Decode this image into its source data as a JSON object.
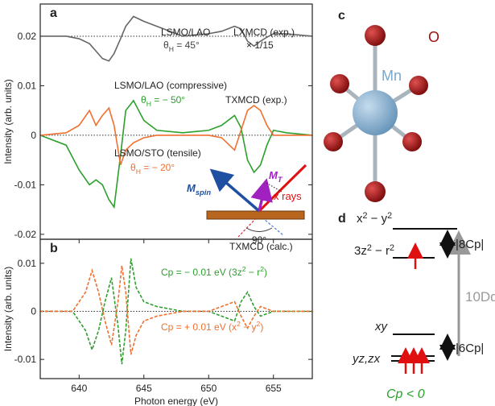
{
  "chart_data": [
    {
      "type": "line",
      "panel": "a",
      "y_label": "Intensity (arb. units)",
      "xlim": [
        637,
        658
      ],
      "ylim": [
        -0.021,
        0.0265
      ],
      "yticks": [
        0.02,
        0.01,
        0,
        -0.01,
        -0.02
      ],
      "ref_lines": [
        0.02,
        0
      ],
      "x": [
        637,
        639,
        640,
        640.8,
        641.3,
        641.8,
        642.3,
        642.7,
        643.2,
        643.6,
        644.2,
        645,
        646,
        648,
        650,
        651,
        652,
        652.5,
        653,
        653.5,
        654,
        654.5,
        655,
        656,
        658
      ],
      "series": [
        {
          "name": "LSMO/LAO",
          "color": "#666666",
          "values": [
            0.02,
            0.02,
            0.0195,
            0.0185,
            0.017,
            0.0155,
            0.015,
            0.0165,
            0.0195,
            0.022,
            0.024,
            0.023,
            0.022,
            0.02,
            0.0205,
            0.021,
            0.022,
            0.0215,
            0.019,
            0.018,
            0.019,
            0.0198,
            0.0205,
            0.0205,
            0.02
          ]
        },
        {
          "name": "LSMO/LAO (compressive)",
          "color": "#2ca02c",
          "values": [
            0,
            -0.002,
            -0.007,
            -0.01,
            -0.009,
            -0.01,
            -0.013,
            -0.0145,
            -0.004,
            0.005,
            0.007,
            0.003,
            0.001,
            0.0005,
            0.001,
            0.002,
            0.004,
            0.0015,
            -0.005,
            -0.0075,
            -0.006,
            -0.002,
            0.001,
            0.0005,
            0
          ]
        },
        {
          "name": "LSMO/STO (tensile)",
          "color": "#f07030",
          "values": [
            0,
            0.0005,
            0.002,
            0.005,
            0.002,
            0.004,
            0.0055,
            0.002,
            -0.006,
            -0.003,
            -0.0015,
            -0.0005,
            0,
            0,
            0,
            -0.0005,
            -0.003,
            0.001,
            0.005,
            0.006,
            0.005,
            0.002,
            0,
            0,
            0
          ]
        }
      ],
      "annotations": [
        {
          "parts": [
            "θ",
            "H",
            " = 45°"
          ],
          "color": "#444444"
        },
        {
          "parts": [
            "LXMCD (exp.)"
          ],
          "color": "#222222"
        },
        {
          "parts": [
            "× 1/15"
          ],
          "color": "#222222"
        },
        {
          "parts": [
            "θ",
            "H",
            " = − 50°"
          ],
          "color": "#2ca02c"
        },
        {
          "parts": [
            "TXMCD (exp.)"
          ],
          "color": "#222222"
        },
        {
          "parts": [
            "θ",
            "H",
            " = − 20°"
          ],
          "color": "#f07030"
        }
      ],
      "inset": {
        "m_spin": [
          "M",
          "spin"
        ],
        "m_t": [
          "M",
          "T"
        ],
        "x_rays": "x rays",
        "angle": "90°"
      }
    },
    {
      "type": "line",
      "panel": "b",
      "y_label": "Intensity (arb. units)",
      "x_label": "Photon energy (eV)",
      "xlim": [
        637,
        658
      ],
      "ylim": [
        -0.014,
        0.015
      ],
      "xticks": [
        640,
        645,
        650,
        655
      ],
      "yticks": [
        0.01,
        0,
        -0.01
      ],
      "ref_lines": [
        0
      ],
      "dashed": true,
      "x": [
        637,
        639.5,
        640.5,
        641,
        641.5,
        642,
        642.5,
        643,
        643.3,
        643.6,
        644,
        644.4,
        645,
        646,
        648,
        650,
        651,
        652,
        652.5,
        653,
        653.5,
        654,
        655,
        658
      ],
      "series": [
        {
          "color": "#2ca02c",
          "values": [
            0,
            0,
            -0.004,
            -0.008,
            -0.004,
            0.002,
            0.007,
            -0.003,
            -0.011,
            -0.004,
            0.011,
            0.005,
            0.002,
            0.001,
            0,
            0,
            -0.001,
            -0.002,
            0.002,
            0.004,
            0.001,
            -0.001,
            0,
            0
          ]
        },
        {
          "color": "#f07030",
          "values": [
            0,
            0,
            0.004,
            0.0085,
            0.004,
            -0.002,
            -0.007,
            0.002,
            0.0095,
            0.004,
            -0.009,
            -0.005,
            -0.002,
            -0.001,
            0,
            0,
            0.001,
            0.002,
            -0.001,
            -0.0035,
            -0.001,
            0.001,
            0,
            0
          ]
        }
      ],
      "annotations": [
        {
          "parts": [
            "TXMCD (calc.)"
          ],
          "color": "#222222"
        },
        {
          "parts": [
            "Cp = − 0.01 eV (3z",
            "2",
            " − r",
            "2",
            ")"
          ],
          "color": "#2ca02c"
        },
        {
          "parts": [
            "Cp = + 0.01 eV (x",
            "2",
            " − y",
            "2",
            ")"
          ],
          "color": "#f07030"
        }
      ]
    }
  ],
  "diagram": {
    "panel_c": {
      "letter": "c",
      "o": "O",
      "mn": "Mn"
    },
    "panel_d": {
      "letter": "d",
      "levels": [
        {
          "parts": [
            "x",
            "2",
            " − y",
            "2"
          ]
        },
        {
          "parts": [
            "3z",
            "2",
            " − r",
            "2"
          ]
        },
        {
          "parts": [
            "xy"
          ]
        },
        {
          "parts": [
            "yz,zx"
          ]
        }
      ],
      "splittings": [
        "|8Cp|",
        "|6Cp|"
      ],
      "dq": "10Dq",
      "condition": "Cp < 0"
    }
  }
}
